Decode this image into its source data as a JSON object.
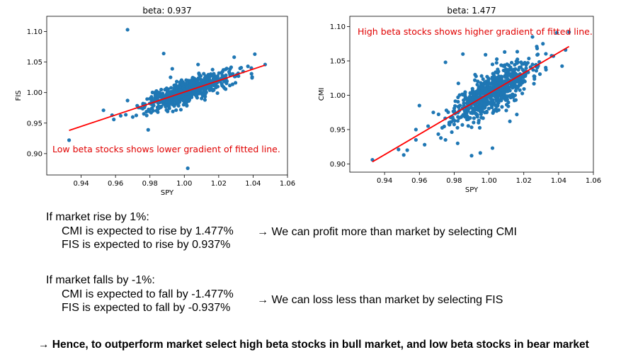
{
  "chart_data": [
    {
      "type": "scatter",
      "title": "beta: 0.937",
      "xlabel": "SPY",
      "ylabel": "FIS",
      "xlim": [
        0.92,
        1.06
      ],
      "ylim": [
        0.865,
        1.125
      ],
      "xticks": [
        "0.94",
        "0.96",
        "0.98",
        "1.00",
        "1.02",
        "1.04",
        "1.06"
      ],
      "yticks": [
        "0.90",
        "0.95",
        "1.00",
        "1.05",
        "1.10"
      ],
      "point_color": "#1f77b4",
      "fit_line_color": "#ff0000",
      "fit_line": {
        "x": [
          0.933,
          1.047
        ],
        "y": [
          0.938,
          1.045
        ]
      },
      "annotation": "Low beta stocks shows lower gradient of fitted line.",
      "points": [
        [
          0.933,
          0.922
        ],
        [
          0.967,
          1.103
        ],
        [
          1.002,
          0.876
        ],
        [
          0.953,
          0.971
        ],
        [
          0.959,
          0.956
        ],
        [
          0.958,
          0.963
        ],
        [
          0.963,
          0.962
        ],
        [
          0.967,
          0.987
        ],
        [
          0.97,
          0.96
        ],
        [
          0.979,
          0.939
        ],
        [
          0.988,
          1.064
        ],
        [
          0.993,
          1.039
        ],
        [
          1.008,
          1.046
        ],
        [
          1.029,
          1.058
        ],
        [
          1.041,
          1.063
        ],
        [
          1.047,
          1.046
        ],
        [
          1.037,
          1.043
        ],
        [
          0.976,
          0.982
        ],
        [
          0.98,
          0.99
        ],
        [
          0.985,
          0.995
        ],
        [
          0.99,
          0.985
        ],
        [
          0.995,
          1.0
        ],
        [
          1.0,
          1.005
        ],
        [
          1.005,
          1.01
        ],
        [
          1.01,
          1.012
        ],
        [
          1.015,
          1.02
        ],
        [
          1.02,
          1.022
        ],
        [
          0.998,
          0.972
        ],
        [
          1.012,
          0.988
        ],
        [
          0.992,
          1.025
        ]
      ]
    },
    {
      "type": "scatter",
      "title": "beta: 1.477",
      "xlabel": "SPY",
      "ylabel": "CMI",
      "xlim": [
        0.92,
        1.06
      ],
      "ylim": [
        0.888,
        1.115
      ],
      "xticks": [
        "0.94",
        "0.96",
        "0.98",
        "1.00",
        "1.02",
        "1.04",
        "1.06"
      ],
      "yticks": [
        "0.90",
        "0.95",
        "1.00",
        "1.05",
        "1.10"
      ],
      "point_color": "#1f77b4",
      "fit_line_color": "#ff0000",
      "fit_line": {
        "x": [
          0.933,
          1.046
        ],
        "y": [
          0.903,
          1.071
        ]
      },
      "annotation": "High beta stocks shows higher gradient of fitted line.",
      "points": [
        [
          0.933,
          0.906
        ],
        [
          0.948,
          0.921
        ],
        [
          0.951,
          0.913
        ],
        [
          0.953,
          0.92
        ],
        [
          0.958,
          0.935
        ],
        [
          0.958,
          0.95
        ],
        [
          0.96,
          0.985
        ],
        [
          0.963,
          0.928
        ],
        [
          0.965,
          0.955
        ],
        [
          0.968,
          0.975
        ],
        [
          0.975,
          0.935
        ],
        [
          0.982,
          0.93
        ],
        [
          0.99,
          0.912
        ],
        [
          0.995,
          0.916
        ],
        [
          1.002,
          0.923
        ],
        [
          1.012,
          0.962
        ],
        [
          1.016,
          0.972
        ],
        [
          1.046,
          1.092
        ],
        [
          1.039,
          1.091
        ],
        [
          1.044,
          1.066
        ],
        [
          1.031,
          1.075
        ],
        [
          1.037,
          1.057
        ],
        [
          1.025,
          1.085
        ],
        [
          1.009,
          1.063
        ],
        [
          0.998,
          1.059
        ],
        [
          0.985,
          1.06
        ],
        [
          0.975,
          1.048
        ],
        [
          0.98,
          0.975
        ],
        [
          0.99,
          0.99
        ],
        [
          1.0,
          1.005
        ],
        [
          1.01,
          1.02
        ],
        [
          1.02,
          1.035
        ],
        [
          1.005,
          0.985
        ],
        [
          1.015,
          1.0
        ],
        [
          0.992,
          1.03
        ],
        [
          1.002,
          1.045
        ]
      ]
    }
  ],
  "text": {
    "rise_heading": "If market rise by 1%:",
    "rise_cmi": "CMI is expected to rise by 1.477%",
    "rise_fis": "FIS is expected to rise by 0.937%",
    "rise_conclusion": "→ We can profit more than market by selecting CMI",
    "fall_heading": "If market falls by -1%:",
    "fall_cmi": "CMI is expected to fall by -1.477%",
    "fall_fis": "FIS is expected to fall by -0.937%",
    "fall_conclusion": "→ We can loss less than market by selecting FIS",
    "summary": "→ Hence, to outperform market select high beta stocks in bull market, and low beta stocks in bear market"
  }
}
